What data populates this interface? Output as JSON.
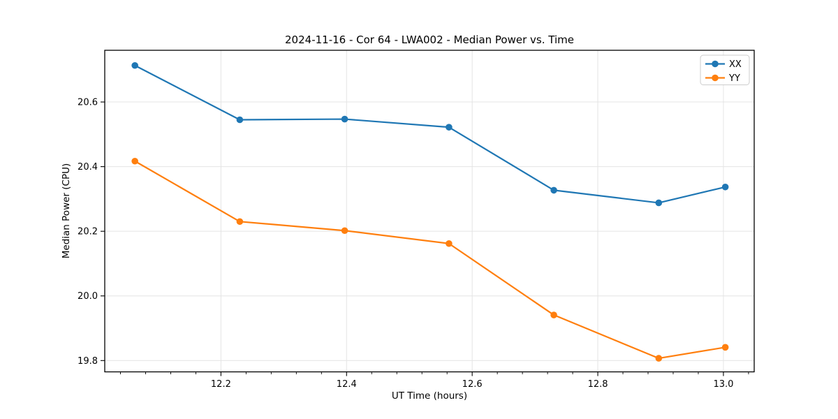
{
  "chart_data": {
    "type": "line",
    "title": "2024-11-16 - Cor 64 - LWA002 - Median Power vs. Time",
    "xlabel": "UT Time (hours)",
    "ylabel": "Median Power (CPU)",
    "x": [
      12.063,
      12.23,
      12.397,
      12.563,
      12.73,
      12.897,
      13.003
    ],
    "series": [
      {
        "name": "XX",
        "color": "#1f77b4",
        "marker": "circle",
        "values": [
          20.713,
          20.545,
          20.547,
          20.522,
          20.327,
          20.288,
          20.337
        ]
      },
      {
        "name": "YY",
        "color": "#ff7f0e",
        "marker": "circle",
        "values": [
          20.417,
          20.23,
          20.202,
          20.162,
          19.941,
          19.807,
          19.841
        ]
      }
    ],
    "xlim": [
      12.015,
      13.049
    ],
    "ylim": [
      19.765,
      20.76
    ],
    "xticks": [
      12.2,
      12.4,
      12.6,
      12.8,
      13.0
    ],
    "yticks": [
      19.8,
      20.0,
      20.2,
      20.4,
      20.6
    ],
    "x_minor_tick_step": 0.04,
    "tick_label_decimals": 1,
    "grid": true,
    "grid_color": "#e4e4e4",
    "axis_color": "#000000",
    "background_color": "#ffffff",
    "legend": {
      "position": "upper right",
      "entries": [
        "XX",
        "YY"
      ]
    }
  }
}
